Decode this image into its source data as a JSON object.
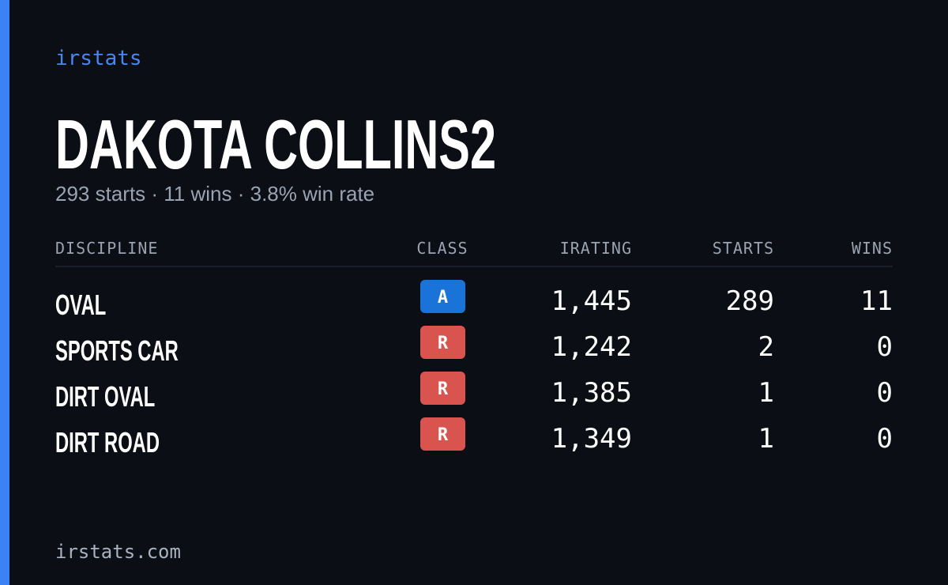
{
  "brand": "irstats",
  "header": {
    "name": "DAKOTA COLLINS2",
    "summary": "293 starts · 11 wins · 3.8% win rate"
  },
  "table": {
    "columns": [
      "DISCIPLINE",
      "CLASS",
      "IRATING",
      "STARTS",
      "WINS"
    ],
    "rows": [
      [
        "OVAL",
        "A",
        "1,445",
        "289",
        "11"
      ],
      [
        "SPORTS CAR",
        "R",
        "1,242",
        "2",
        "0"
      ],
      [
        "DIRT OVAL",
        "R",
        "1,385",
        "1",
        "0"
      ],
      [
        "DIRT ROAD",
        "R",
        "1,349",
        "1",
        "0"
      ]
    ]
  },
  "footer": "irstats.com"
}
